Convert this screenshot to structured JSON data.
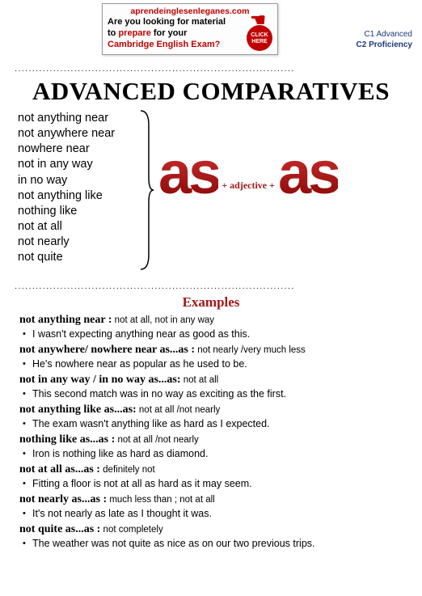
{
  "promo": {
    "url": "aprendeinglesenleganes.com",
    "line2": "Are you looking for material",
    "line3_a": "to ",
    "line3_b": "prepare",
    "line3_c": " for your",
    "line4": "Cambridge English Exam?",
    "click": "CLICK HERE"
  },
  "levels": {
    "c1": "C1 Advanced",
    "c2": "C2 Proficiency"
  },
  "title": "ADVANCED COMPARATIVES",
  "phrases": [
    "not anything near",
    "not anywhere near",
    "nowhere near",
    "not in any way",
    "in no way",
    "not anything like",
    "nothing like",
    "not at all",
    "not nearly",
    "not quite"
  ],
  "formula": {
    "as1": "as",
    "mid": "+ adjective +",
    "as2": "as"
  },
  "examples_heading": "Examples",
  "entries": [
    {
      "term": "not anything near :",
      "def": " not at all, not in any way",
      "ex": "I wasn't expecting anything near as good as this."
    },
    {
      "term": "not anywhere/ nowhere near as...as :",
      "def": " not nearly /very much less",
      "ex": "He's nowhere near as popular as he used to be."
    },
    {
      "term": "not in any way / in no way as...as:",
      "def": " not at all",
      "ex": "This second match was in no way as exciting as the first."
    },
    {
      "term": "not anything like as...as:",
      "def": " not at all /not nearly",
      "ex": "The exam wasn't anything like as hard as I expected."
    },
    {
      "term": "nothing like as...as :",
      "def": " not at all /not nearly",
      "ex": "Iron is nothing like as hard as diamond."
    },
    {
      "term": "not at all as...as :",
      "def": " definitely not",
      "ex": "Fitting a floor is not at all as hard as it may seem."
    },
    {
      "term": "not nearly as...as :",
      "def": " much less than ; not at all",
      "ex": "It's not nearly as late as I thought it was."
    },
    {
      "term": "not quite as...as :",
      "def": " not completely",
      "ex": "The weather was not quite as nice as on our two previous trips."
    }
  ],
  "style": {
    "accent_red": "#a01818",
    "brace_color": "#000000",
    "dot_row": "················································································"
  }
}
